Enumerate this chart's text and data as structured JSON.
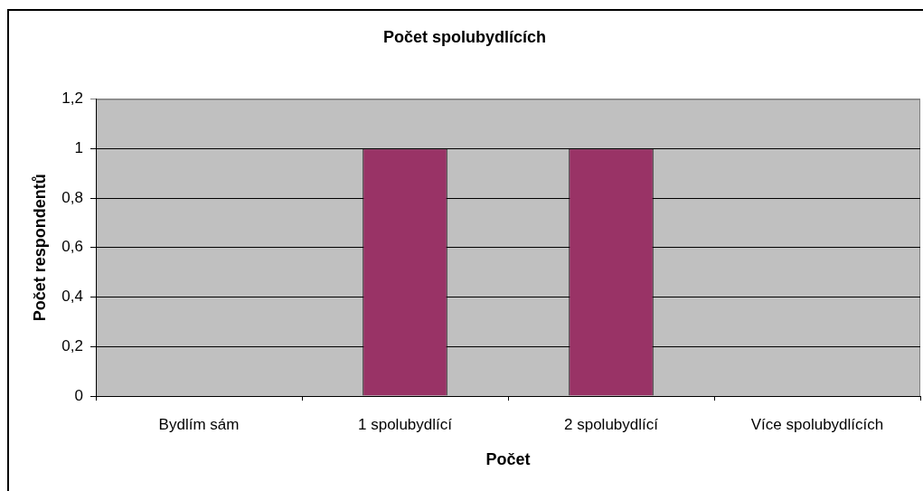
{
  "chart_data": {
    "type": "bar",
    "title": "Počet spolubydlících",
    "xlabel": "Počet",
    "ylabel": "Počet respondentů",
    "categories": [
      "Bydlím sám",
      "1 spolubydlící",
      "2 spolubydlící",
      "Více spolubydlících"
    ],
    "values": [
      0,
      1,
      1,
      0
    ],
    "color": "#993366",
    "ylim": [
      0,
      1.2
    ],
    "yticks": [
      0,
      {
        "value": 0.2,
        "label": "0,2"
      },
      {
        "value": 0.4,
        "label": "0,4"
      },
      {
        "value": 0.6,
        "label": "0,6"
      },
      {
        "value": 0.8,
        "label": "0,8"
      },
      1,
      {
        "value": 1.2,
        "label": "1,2"
      }
    ],
    "grid": "y"
  }
}
